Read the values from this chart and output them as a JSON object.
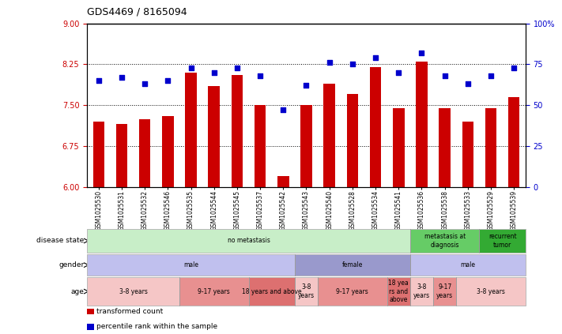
{
  "title": "GDS4469 / 8165094",
  "samples": [
    "GSM1025530",
    "GSM1025531",
    "GSM1025532",
    "GSM1025546",
    "GSM1025535",
    "GSM1025544",
    "GSM1025545",
    "GSM1025537",
    "GSM1025542",
    "GSM1025543",
    "GSM1025540",
    "GSM1025528",
    "GSM1025534",
    "GSM1025541",
    "GSM1025536",
    "GSM1025538",
    "GSM1025533",
    "GSM1025529",
    "GSM1025539"
  ],
  "bar_values": [
    7.2,
    7.15,
    7.25,
    7.3,
    8.1,
    7.85,
    8.05,
    7.5,
    6.2,
    7.5,
    7.9,
    7.7,
    8.2,
    7.45,
    8.3,
    7.45,
    7.2,
    7.45,
    7.65
  ],
  "dot_values": [
    65,
    67,
    63,
    65,
    73,
    70,
    73,
    68,
    47,
    62,
    76,
    75,
    79,
    70,
    82,
    68,
    63,
    68,
    73
  ],
  "ylim_left": [
    6,
    9
  ],
  "ylim_right": [
    0,
    100
  ],
  "yticks_left": [
    6,
    6.75,
    7.5,
    8.25,
    9
  ],
  "yticks_right": [
    0,
    25,
    50,
    75,
    100
  ],
  "bar_color": "#cc0000",
  "dot_color": "#0000cc",
  "disease_state_rows": [
    {
      "label": "no metastasis",
      "start": 0,
      "end": 14,
      "color": "#c8eec8"
    },
    {
      "label": "metastasis at\ndiagnosis",
      "start": 14,
      "end": 17,
      "color": "#66cc66"
    },
    {
      "label": "recurrent\ntumor",
      "start": 17,
      "end": 19,
      "color": "#33aa33"
    }
  ],
  "gender_rows": [
    {
      "label": "male",
      "start": 0,
      "end": 9,
      "color": "#c0c0ee"
    },
    {
      "label": "female",
      "start": 9,
      "end": 14,
      "color": "#9999cc"
    },
    {
      "label": "male",
      "start": 14,
      "end": 19,
      "color": "#c0c0ee"
    }
  ],
  "age_rows": [
    {
      "label": "3-8 years",
      "start": 0,
      "end": 4,
      "color": "#f5c6c6"
    },
    {
      "label": "9-17 years",
      "start": 4,
      "end": 7,
      "color": "#e89090"
    },
    {
      "label": "18 years and above",
      "start": 7,
      "end": 9,
      "color": "#dd7070"
    },
    {
      "label": "3-8\nyears",
      "start": 9,
      "end": 10,
      "color": "#f5c6c6"
    },
    {
      "label": "9-17 years",
      "start": 10,
      "end": 13,
      "color": "#e89090"
    },
    {
      "label": "18 yea\nrs and\nabove",
      "start": 13,
      "end": 14,
      "color": "#dd7070"
    },
    {
      "label": "3-8\nyears",
      "start": 14,
      "end": 15,
      "color": "#f5c6c6"
    },
    {
      "label": "9-17\nyears",
      "start": 15,
      "end": 16,
      "color": "#e89090"
    },
    {
      "label": "3-8 years",
      "start": 16,
      "end": 19,
      "color": "#f5c6c6"
    }
  ],
  "row_labels": [
    "disease state",
    "gender",
    "age"
  ],
  "legend_items": [
    {
      "label": "transformed count",
      "color": "#cc0000"
    },
    {
      "label": "percentile rank within the sample",
      "color": "#0000cc"
    }
  ],
  "background_color": "#ffffff"
}
